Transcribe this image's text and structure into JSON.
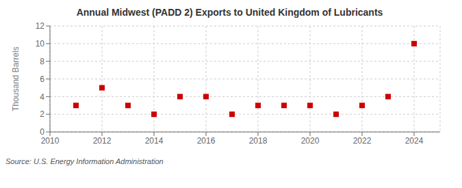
{
  "chart_data": {
    "type": "scatter",
    "title": "Annual Midwest (PADD 2) Exports to United Kingdom of Lubricants",
    "ylabel": "Thousand Barrels",
    "annotations": [
      "Source: U.S. Energy Information Administration"
    ],
    "x": [
      2011,
      2012,
      2013,
      2014,
      2015,
      2016,
      2017,
      2018,
      2019,
      2020,
      2021,
      2022,
      2023,
      2024
    ],
    "values": [
      3,
      5,
      3,
      2,
      4,
      4,
      2,
      3,
      3,
      3,
      2,
      3,
      4,
      10
    ],
    "xlim": [
      2010,
      2025
    ],
    "ylim": [
      0,
      12
    ],
    "xticks": [
      2010,
      2012,
      2014,
      2016,
      2018,
      2020,
      2022,
      2024
    ],
    "yticks": [
      0,
      2,
      4,
      6,
      8,
      10,
      12
    ],
    "color": "#cc0000",
    "marker": "square",
    "grid": true
  }
}
